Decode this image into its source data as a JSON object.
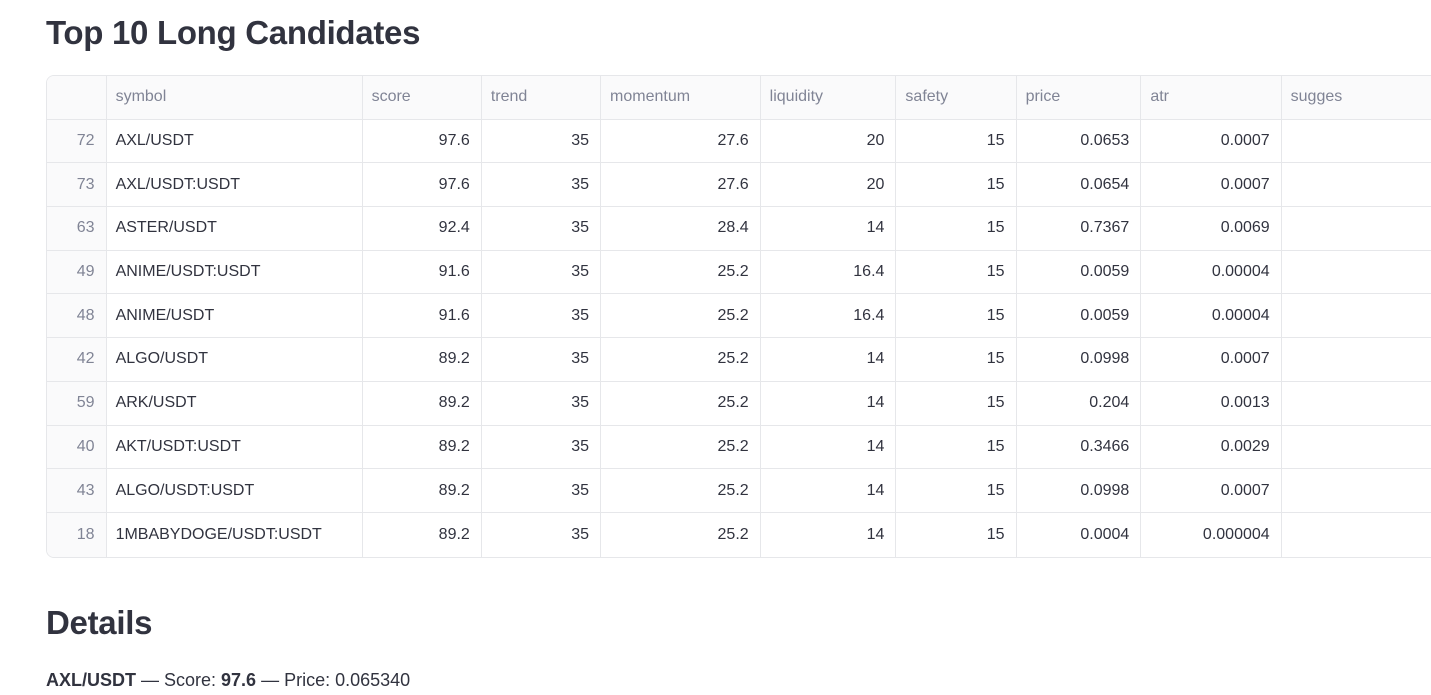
{
  "title": "Top 10 Long Candidates",
  "table": {
    "columns": [
      "symbol",
      "score",
      "trend",
      "momentum",
      "liquidity",
      "safety",
      "price",
      "atr",
      "sugges"
    ],
    "rows": [
      [
        72,
        "AXL/USDT",
        97.6,
        35,
        27.6,
        20,
        15,
        0.0653,
        0.0007
      ],
      [
        73,
        "AXL/USDT:USDT",
        97.6,
        35,
        27.6,
        20,
        15,
        0.0654,
        0.0007
      ],
      [
        63,
        "ASTER/USDT",
        92.4,
        35,
        28.4,
        14,
        15,
        0.7367,
        0.0069
      ],
      [
        49,
        "ANIME/USDT:USDT",
        91.6,
        35,
        25.2,
        16.4,
        15,
        0.0059,
        4e-05
      ],
      [
        48,
        "ANIME/USDT",
        91.6,
        35,
        25.2,
        16.4,
        15,
        0.0059,
        4e-05
      ],
      [
        42,
        "ALGO/USDT",
        89.2,
        35,
        25.2,
        14,
        15,
        0.0998,
        0.0007
      ],
      [
        59,
        "ARK/USDT",
        89.2,
        35,
        25.2,
        14,
        15,
        0.204,
        0.0013
      ],
      [
        40,
        "AKT/USDT:USDT",
        89.2,
        35,
        25.2,
        14,
        15,
        0.3466,
        0.0029
      ],
      [
        43,
        "ALGO/USDT:USDT",
        89.2,
        35,
        25.2,
        14,
        15,
        0.0998,
        0.0007
      ],
      [
        18,
        "1MBABYDOGE/USDT:USDT",
        89.2,
        35,
        25.2,
        14,
        15,
        0.0004,
        4e-06
      ]
    ]
  },
  "details_title": "Details",
  "details": {
    "symbol": "AXL/USDT",
    "score_label": " — Score: ",
    "score": 97.6,
    "price_label": " — Price: 0.065340"
  }
}
